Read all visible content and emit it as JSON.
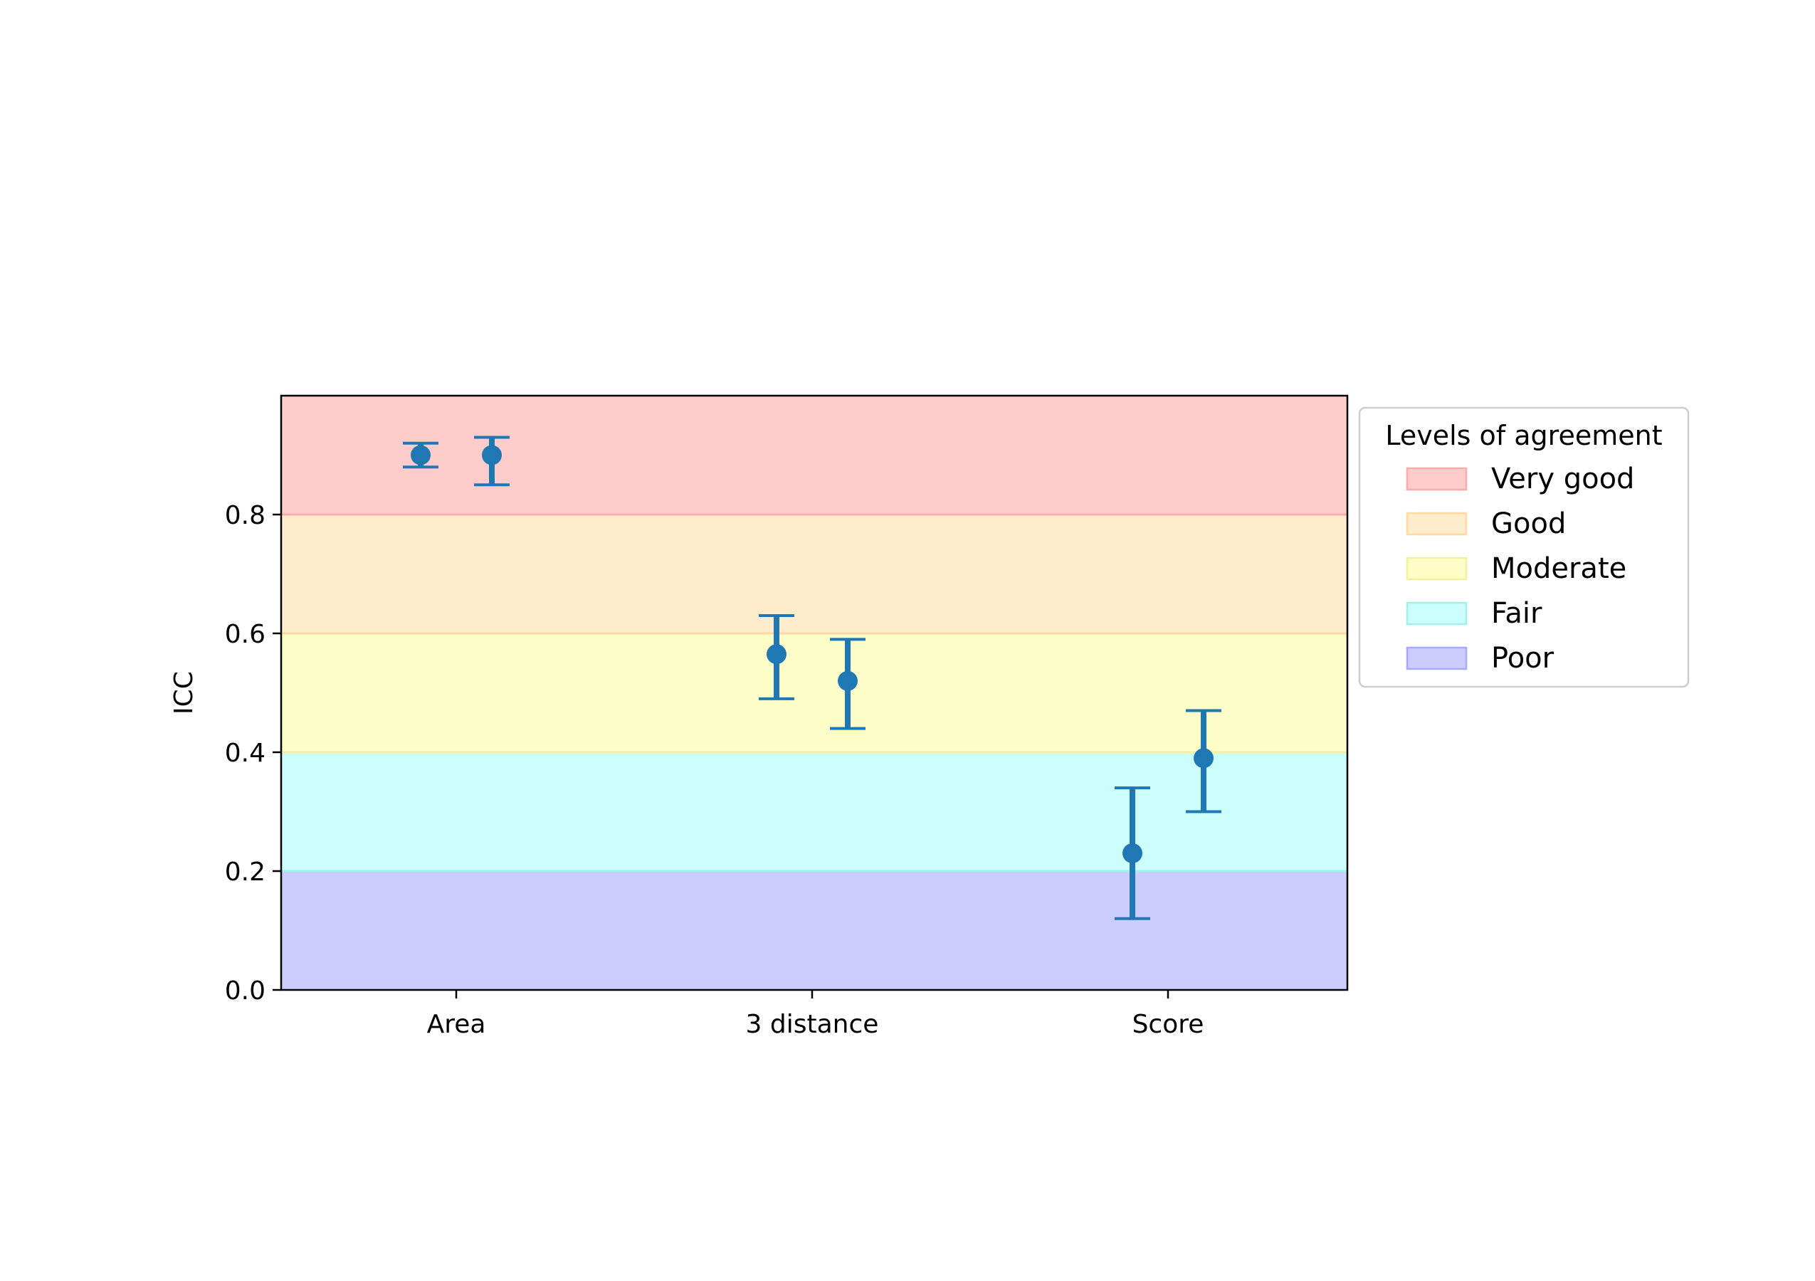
{
  "chart_data": {
    "type": "scatter",
    "ylabel": "ICC",
    "xlabel": "",
    "title": "",
    "ylim": [
      0,
      1
    ],
    "yticks": [
      "0.0",
      "0.2",
      "0.4",
      "0.6",
      "0.8"
    ],
    "categories": [
      "Area",
      "3 distance",
      "Score"
    ],
    "marker_color": "#1f77b4",
    "points": [
      {
        "category": "Area",
        "slot": 0,
        "y": 0.9,
        "low": 0.88,
        "high": 0.92
      },
      {
        "category": "Area",
        "slot": 1,
        "y": 0.9,
        "low": 0.85,
        "high": 0.93
      },
      {
        "category": "3 distance",
        "slot": 0,
        "y": 0.565,
        "low": 0.49,
        "high": 0.63
      },
      {
        "category": "3 distance",
        "slot": 1,
        "y": 0.52,
        "low": 0.44,
        "high": 0.59
      },
      {
        "category": "Score",
        "slot": 0,
        "y": 0.23,
        "low": 0.12,
        "high": 0.34
      },
      {
        "category": "Score",
        "slot": 1,
        "y": 0.39,
        "low": 0.3,
        "high": 0.47
      }
    ],
    "bands": [
      {
        "label": "Very good",
        "from": 0.8,
        "to": 1.0,
        "fill": "#ffcccc",
        "edge": "#ffaaaa"
      },
      {
        "label": "Good",
        "from": 0.6,
        "to": 0.8,
        "fill": "#ffeccc",
        "edge": "#ffd9a0"
      },
      {
        "label": "Moderate",
        "from": 0.4,
        "to": 0.6,
        "fill": "#fdfdc8",
        "edge": "#f5f0a0"
      },
      {
        "label": "Fair",
        "from": 0.2,
        "to": 0.4,
        "fill": "#ccfffc",
        "edge": "#a0f0ec"
      },
      {
        "label": "Poor",
        "from": 0.0,
        "to": 0.2,
        "fill": "#ccccff",
        "edge": "#a8a8ff"
      }
    ],
    "legend": {
      "title": "Levels of agreement",
      "placement": "outside-right"
    }
  }
}
